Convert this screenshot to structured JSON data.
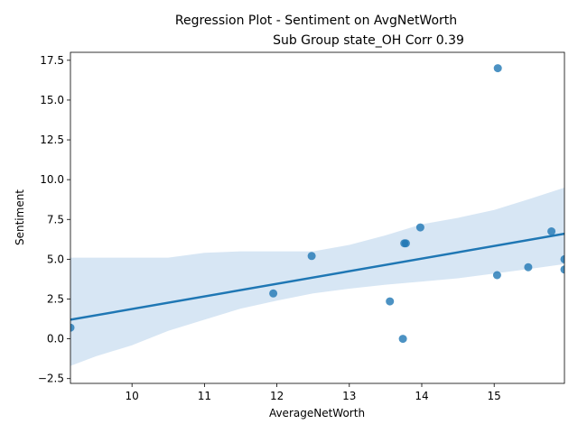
{
  "chart_data": {
    "type": "scatter",
    "title_line1": "Regression Plot - Sentiment on AvgNetWorth",
    "title_line2": "Sub Group state_OH Corr 0.39",
    "xlabel": "AverageNetWorth",
    "ylabel": "Sentiment",
    "xlim": [
      9.15,
      15.97
    ],
    "ylim": [
      -2.8,
      18.0
    ],
    "xticks": [
      10,
      11,
      12,
      13,
      14,
      15
    ],
    "yticks": [
      -2.5,
      0.0,
      2.5,
      5.0,
      7.5,
      10.0,
      12.5,
      15.0,
      17.5
    ],
    "ytick_labels": [
      "−2.5",
      "0.0",
      "2.5",
      "5.0",
      "7.5",
      "10.0",
      "12.5",
      "15.0",
      "17.5"
    ],
    "grid": false,
    "colors": {
      "points": "#1f77b4",
      "line": "#1f77b4",
      "ci_band": "#c6dbef"
    },
    "points": [
      {
        "x": 9.15,
        "y": 0.7
      },
      {
        "x": 11.95,
        "y": 2.85
      },
      {
        "x": 12.48,
        "y": 5.2
      },
      {
        "x": 13.56,
        "y": 2.35
      },
      {
        "x": 13.74,
        "y": 0.0
      },
      {
        "x": 13.76,
        "y": 6.0
      },
      {
        "x": 13.78,
        "y": 6.0
      },
      {
        "x": 13.98,
        "y": 7.0
      },
      {
        "x": 15.04,
        "y": 4.0
      },
      {
        "x": 15.05,
        "y": 17.0
      },
      {
        "x": 15.47,
        "y": 4.5
      },
      {
        "x": 15.79,
        "y": 6.75
      },
      {
        "x": 15.97,
        "y": 5.0
      },
      {
        "x": 15.97,
        "y": 4.35
      }
    ],
    "regression_line": {
      "x": [
        9.15,
        15.97
      ],
      "y": [
        1.2,
        6.6
      ]
    },
    "ci_band": {
      "x": [
        9.15,
        9.5,
        10.0,
        10.5,
        11.0,
        11.5,
        12.0,
        12.5,
        13.0,
        13.5,
        14.0,
        14.5,
        15.0,
        15.5,
        15.97
      ],
      "lower": [
        -1.7,
        -1.1,
        -0.4,
        0.5,
        1.2,
        1.9,
        2.4,
        2.85,
        3.15,
        3.4,
        3.6,
        3.8,
        4.1,
        4.4,
        4.7
      ],
      "upper": [
        5.1,
        5.1,
        5.1,
        5.1,
        5.4,
        5.5,
        5.5,
        5.5,
        5.9,
        6.5,
        7.2,
        7.6,
        8.1,
        8.8,
        9.5
      ]
    }
  }
}
